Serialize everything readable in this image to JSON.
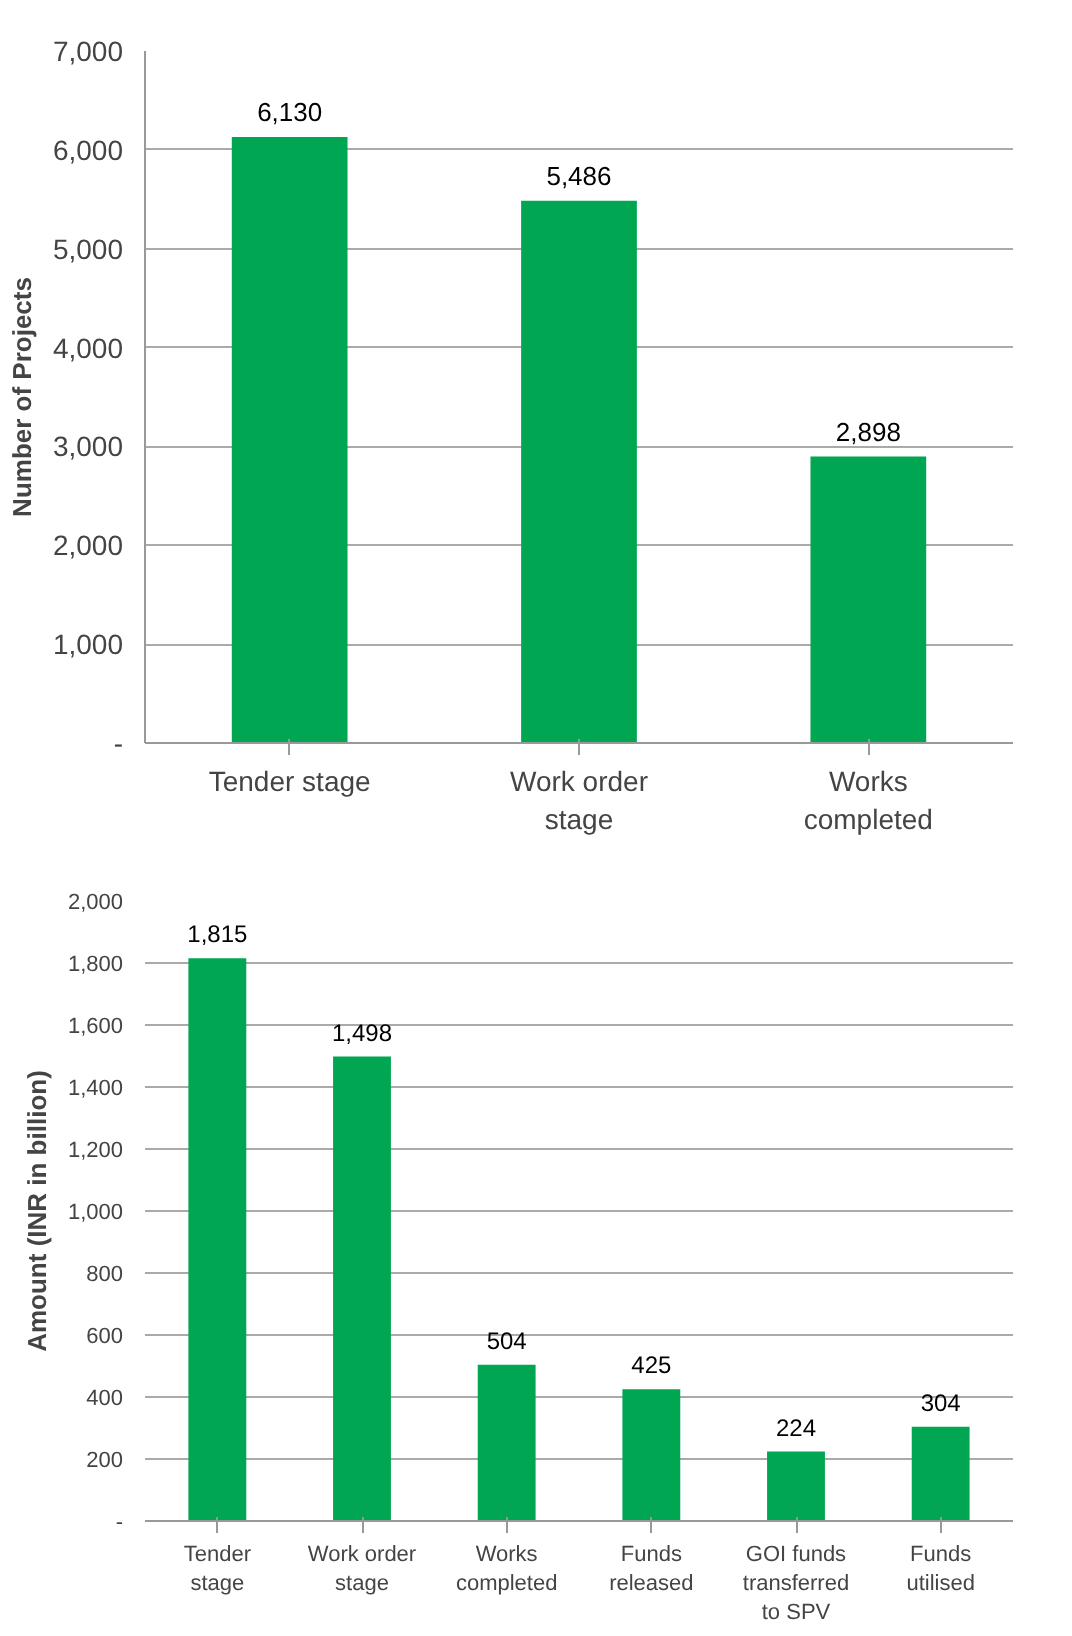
{
  "chart_data": [
    {
      "type": "bar",
      "ylabel": "Number of Projects",
      "categories": [
        "Tender stage",
        "Work order stage",
        "Works completed"
      ],
      "values": [
        6130,
        5486,
        2898
      ],
      "value_labels": [
        "6,130",
        "5,486",
        "2,898"
      ],
      "color": "#00a651",
      "ylim": [
        0,
        7000
      ],
      "yticks": [
        {
          "value": 0,
          "label": "-"
        },
        {
          "value": 1000,
          "label": "1,000"
        },
        {
          "value": 2000,
          "label": "2,000"
        },
        {
          "value": 3000,
          "label": "3,000"
        },
        {
          "value": 4000,
          "label": "4,000"
        },
        {
          "value": 5000,
          "label": "5,000"
        },
        {
          "value": 6000,
          "label": "6,000"
        },
        {
          "value": 7000,
          "label": "7,000"
        }
      ],
      "grid": "y"
    },
    {
      "type": "bar",
      "ylabel": "Amount (INR in billion)",
      "categories": [
        "Tender stage",
        "Work order stage",
        "Works completed",
        "Funds released",
        "GOI funds transferred to SPV",
        "Funds utilised"
      ],
      "values": [
        1815,
        1498,
        504,
        425,
        224,
        304
      ],
      "value_labels": [
        "1,815",
        "1,498",
        "504",
        "425",
        "224",
        "304"
      ],
      "color": "#00a651",
      "ylim": [
        0,
        2000
      ],
      "yticks": [
        {
          "value": 0,
          "label": "-"
        },
        {
          "value": 200,
          "label": "200"
        },
        {
          "value": 400,
          "label": "400"
        },
        {
          "value": 600,
          "label": "600"
        },
        {
          "value": 800,
          "label": "800"
        },
        {
          "value": 1000,
          "label": "1,000"
        },
        {
          "value": 1200,
          "label": "1,200"
        },
        {
          "value": 1400,
          "label": "1,400"
        },
        {
          "value": 1600,
          "label": "1,600"
        },
        {
          "value": 1800,
          "label": "1,800"
        },
        {
          "value": 2000,
          "label": "2,000"
        }
      ],
      "grid": "y"
    }
  ]
}
